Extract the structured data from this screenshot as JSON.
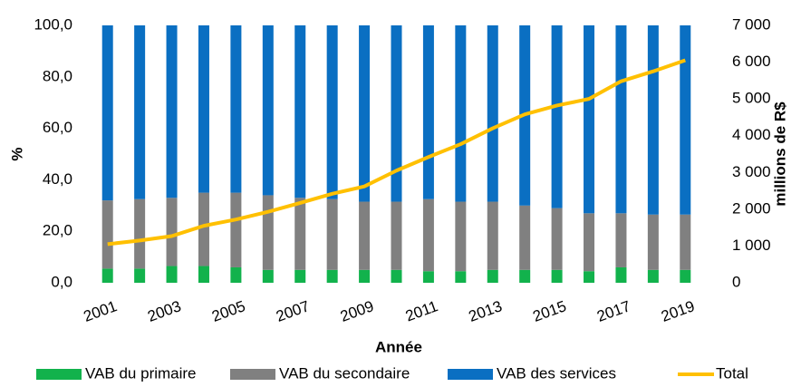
{
  "chart_data": {
    "type": "bar",
    "stacked": true,
    "x_label": "Année",
    "y_label": "%",
    "y2_label": "millions de R$",
    "categories": [
      "2001",
      null,
      "2003",
      null,
      "2005",
      null,
      "2007",
      null,
      "2009",
      null,
      "2011",
      null,
      "2013",
      null,
      "2015",
      null,
      "2017",
      null,
      "2019"
    ],
    "series": [
      {
        "name": "VAB du primaire",
        "color": "#12b24c",
        "values": [
          5.5,
          5.5,
          6.5,
          6.5,
          6.0,
          5.0,
          5.0,
          5.0,
          5.0,
          5.0,
          4.5,
          4.5,
          5.0,
          5.0,
          5.0,
          4.5,
          6.0,
          5.0,
          5.0
        ]
      },
      {
        "name": "VAB du secondaire",
        "color": "#808080",
        "values": [
          26.5,
          27,
          26.5,
          28.5,
          29,
          29,
          28,
          27.5,
          26.5,
          26.5,
          28,
          27,
          26.5,
          25,
          24,
          22.5,
          21,
          21.5,
          21.5
        ]
      },
      {
        "name": "VAB des services",
        "color": "#0a6fc2",
        "values": [
          68,
          67.5,
          67,
          65,
          65,
          66,
          67,
          67.5,
          68.5,
          68.5,
          67.5,
          68.5,
          68.5,
          70,
          71,
          73,
          73,
          73.5,
          73.5
        ]
      },
      {
        "name": "Total",
        "type": "line",
        "axis": "y2",
        "color": "#ffc000",
        "values": [
          1050,
          1150,
          1270,
          1550,
          1720,
          1930,
          2170,
          2420,
          2620,
          3050,
          3420,
          3770,
          4200,
          4580,
          4820,
          5000,
          5480,
          5750,
          6050
        ]
      }
    ],
    "ylim": [
      0,
      100
    ],
    "yticks": [
      {
        "value": 0,
        "label": "0,0"
      },
      {
        "value": 20,
        "label": "20,0"
      },
      {
        "value": 40,
        "label": "40,0"
      },
      {
        "value": 60,
        "label": "60,0"
      },
      {
        "value": 80,
        "label": "80,0"
      },
      {
        "value": 100,
        "label": "100,0"
      }
    ],
    "y2lim": [
      0,
      7000
    ],
    "y2ticks": [
      0,
      {
        "value": 1000,
        "label": "1 000"
      },
      {
        "value": 2000,
        "label": "2 000"
      },
      {
        "value": 3000,
        "label": "3 000"
      },
      {
        "value": 4000,
        "label": "4 000"
      },
      {
        "value": 5000,
        "label": "5 000"
      },
      {
        "value": 6000,
        "label": "6 000"
      },
      {
        "value": 7000,
        "label": "7 000"
      }
    ],
    "grid": false,
    "legend": "bottom"
  }
}
